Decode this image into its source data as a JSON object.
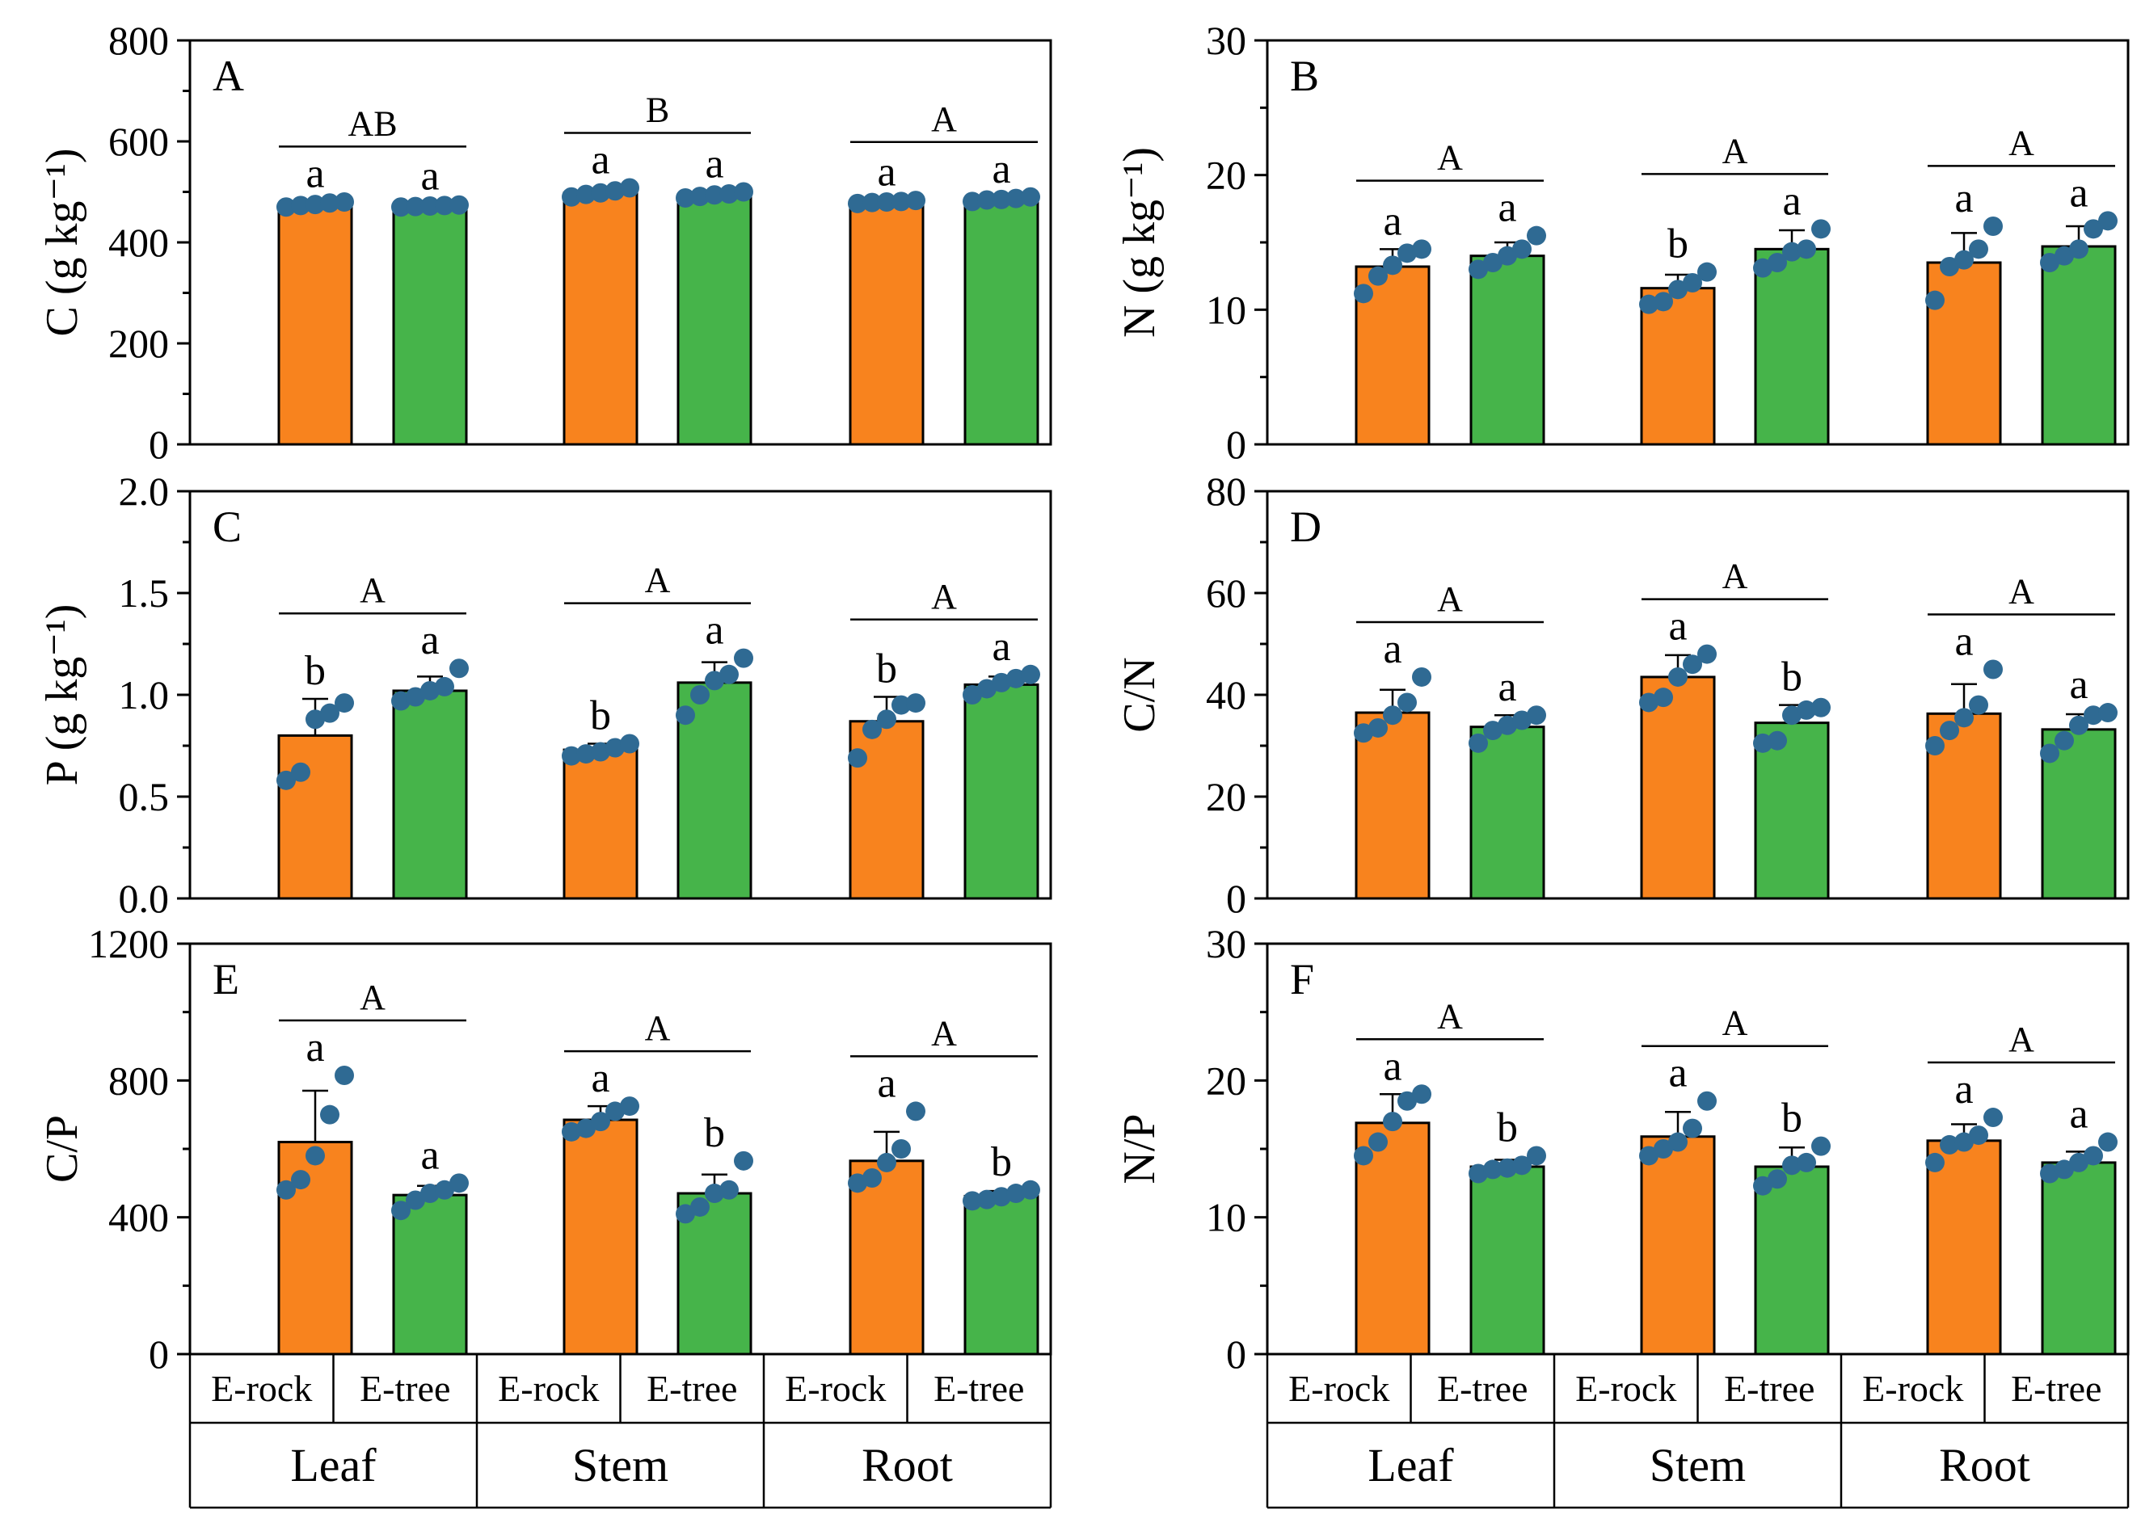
{
  "figure": {
    "colors": {
      "e_rock": "#F8831E",
      "e_tree": "#46B44A",
      "points": "#2F6A93"
    },
    "x_categories": [
      "E-rock",
      "E-tree"
    ],
    "organs": [
      "Leaf",
      "Stem",
      "Root"
    ]
  },
  "chart_data": [
    {
      "panel_label": "A",
      "type": "bar",
      "ylabel": "C (g kg⁻¹)",
      "ylim": [
        0,
        800
      ],
      "yticks": [
        "0",
        "200",
        "400",
        "600",
        "800"
      ],
      "groups": [
        {
          "organ": "Leaf",
          "group_letter": "AB",
          "bars": [
            {
              "name": "E-rock",
              "value": 475,
              "sd": 6,
              "letter": "a",
              "points": [
                470,
                473,
                475,
                478,
                480
              ]
            },
            {
              "name": "E-tree",
              "value": 472,
              "sd": 4,
              "letter": "a",
              "points": [
                470,
                471,
                472,
                473,
                474
              ]
            }
          ]
        },
        {
          "organ": "Stem",
          "group_letter": "B",
          "bars": [
            {
              "name": "E-rock",
              "value": 498,
              "sd": 8,
              "letter": "a",
              "points": [
                490,
                495,
                498,
                502,
                508
              ]
            },
            {
              "name": "E-tree",
              "value": 493,
              "sd": 6,
              "letter": "a",
              "points": [
                488,
                491,
                494,
                496,
                500
              ]
            }
          ]
        },
        {
          "organ": "Root",
          "group_letter": "A",
          "bars": [
            {
              "name": "E-rock",
              "value": 480,
              "sd": 4,
              "letter": "a",
              "points": [
                477,
                479,
                480,
                481,
                483
              ]
            },
            {
              "name": "E-tree",
              "value": 485,
              "sd": 5,
              "letter": "a",
              "points": [
                481,
                484,
                485,
                487,
                490
              ]
            }
          ]
        }
      ]
    },
    {
      "panel_label": "B",
      "type": "bar",
      "ylabel": "N (g kg⁻¹)",
      "ylim": [
        0,
        30
      ],
      "yticks": [
        "0",
        "10",
        "20",
        "30"
      ],
      "groups": [
        {
          "organ": "Leaf",
          "group_letter": "A",
          "bars": [
            {
              "name": "E-rock",
              "value": 13.2,
              "sd": 1.3,
              "letter": "a",
              "points": [
                11.2,
                12.5,
                13.3,
                14.2,
                14.5
              ]
            },
            {
              "name": "E-tree",
              "value": 14.0,
              "sd": 1.0,
              "letter": "a",
              "points": [
                13.0,
                13.5,
                14.0,
                14.5,
                15.5
              ]
            }
          ]
        },
        {
          "organ": "Stem",
          "group_letter": "A",
          "bars": [
            {
              "name": "E-rock",
              "value": 11.6,
              "sd": 1.0,
              "letter": "b",
              "points": [
                10.4,
                10.6,
                11.5,
                12.0,
                12.8
              ]
            },
            {
              "name": "E-tree",
              "value": 14.5,
              "sd": 1.4,
              "letter": "a",
              "points": [
                13.1,
                13.5,
                14.3,
                14.5,
                16.0
              ]
            }
          ]
        },
        {
          "organ": "Root",
          "group_letter": "A",
          "bars": [
            {
              "name": "E-rock",
              "value": 13.5,
              "sd": 2.2,
              "letter": "a",
              "points": [
                10.7,
                13.2,
                13.7,
                14.5,
                16.2
              ]
            },
            {
              "name": "E-tree",
              "value": 14.7,
              "sd": 1.5,
              "letter": "a",
              "points": [
                13.5,
                14.0,
                14.5,
                16.0,
                16.6
              ]
            }
          ]
        }
      ]
    },
    {
      "panel_label": "C",
      "type": "bar",
      "ylabel": "P (g kg⁻¹)",
      "ylim": [
        0,
        2.0
      ],
      "yticks": [
        "0.0",
        "0.5",
        "1.0",
        "1.5",
        "2.0"
      ],
      "groups": [
        {
          "organ": "Leaf",
          "group_letter": "A",
          "bars": [
            {
              "name": "E-rock",
              "value": 0.8,
              "sd": 0.18,
              "letter": "b",
              "points": [
                0.58,
                0.62,
                0.88,
                0.91,
                0.96
              ]
            },
            {
              "name": "E-tree",
              "value": 1.02,
              "sd": 0.07,
              "letter": "a",
              "points": [
                0.97,
                0.99,
                1.02,
                1.04,
                1.13
              ]
            }
          ]
        },
        {
          "organ": "Stem",
          "group_letter": "A",
          "bars": [
            {
              "name": "E-rock",
              "value": 0.73,
              "sd": 0.03,
              "letter": "b",
              "points": [
                0.7,
                0.71,
                0.72,
                0.74,
                0.76
              ]
            },
            {
              "name": "E-tree",
              "value": 1.06,
              "sd": 0.1,
              "letter": "a",
              "points": [
                0.9,
                1.0,
                1.07,
                1.1,
                1.18
              ]
            }
          ]
        },
        {
          "organ": "Root",
          "group_letter": "A",
          "bars": [
            {
              "name": "E-rock",
              "value": 0.87,
              "sd": 0.12,
              "letter": "b",
              "points": [
                0.69,
                0.83,
                0.88,
                0.95,
                0.96
              ]
            },
            {
              "name": "E-tree",
              "value": 1.05,
              "sd": 0.04,
              "letter": "a",
              "points": [
                1.0,
                1.03,
                1.06,
                1.08,
                1.1
              ]
            }
          ]
        }
      ]
    },
    {
      "panel_label": "D",
      "type": "bar",
      "ylabel": "C/N",
      "ylim": [
        0,
        80
      ],
      "yticks": [
        "0",
        "20",
        "40",
        "60",
        "80"
      ],
      "groups": [
        {
          "organ": "Leaf",
          "group_letter": "A",
          "bars": [
            {
              "name": "E-rock",
              "value": 36.5,
              "sd": 4.5,
              "letter": "a",
              "points": [
                32.5,
                33.5,
                36.0,
                38.5,
                43.5
              ]
            },
            {
              "name": "E-tree",
              "value": 33.7,
              "sd": 2.3,
              "letter": "a",
              "points": [
                30.5,
                33.0,
                34.0,
                35.0,
                36.0
              ]
            }
          ]
        },
        {
          "organ": "Stem",
          "group_letter": "A",
          "bars": [
            {
              "name": "E-rock",
              "value": 43.5,
              "sd": 4.3,
              "letter": "a",
              "points": [
                38.5,
                39.5,
                43.5,
                46.0,
                48.0
              ]
            },
            {
              "name": "E-tree",
              "value": 34.5,
              "sd": 3.5,
              "letter": "b",
              "points": [
                30.5,
                31.0,
                36.0,
                37.0,
                37.5
              ]
            }
          ]
        },
        {
          "organ": "Root",
          "group_letter": "A",
          "bars": [
            {
              "name": "E-rock",
              "value": 36.3,
              "sd": 5.8,
              "letter": "a",
              "points": [
                30.0,
                33.0,
                35.5,
                38.0,
                45.0
              ]
            },
            {
              "name": "E-tree",
              "value": 33.2,
              "sd": 3.0,
              "letter": "a",
              "points": [
                28.5,
                31.0,
                34.0,
                36.0,
                36.5
              ]
            }
          ]
        }
      ]
    },
    {
      "panel_label": "E",
      "type": "bar",
      "ylabel": "C/P",
      "ylim": [
        0,
        1200
      ],
      "yticks": [
        "0",
        "400",
        "800",
        "1200"
      ],
      "groups": [
        {
          "organ": "Leaf",
          "group_letter": "A",
          "bars": [
            {
              "name": "E-rock",
              "value": 620,
              "sd": 150,
              "letter": "a",
              "points": [
                480,
                510,
                580,
                700,
                815
              ]
            },
            {
              "name": "E-tree",
              "value": 465,
              "sd": 27,
              "letter": "a",
              "points": [
                420,
                450,
                470,
                480,
                500
              ]
            }
          ]
        },
        {
          "organ": "Stem",
          "group_letter": "A",
          "bars": [
            {
              "name": "E-rock",
              "value": 685,
              "sd": 40,
              "letter": "a",
              "points": [
                650,
                660,
                680,
                710,
                725
              ]
            },
            {
              "name": "E-tree",
              "value": 470,
              "sd": 55,
              "letter": "b",
              "points": [
                410,
                430,
                470,
                480,
                565
              ]
            }
          ]
        },
        {
          "organ": "Root",
          "group_letter": "A",
          "bars": [
            {
              "name": "E-rock",
              "value": 565,
              "sd": 85,
              "letter": "a",
              "points": [
                500,
                515,
                560,
                600,
                710
              ]
            },
            {
              "name": "E-tree",
              "value": 462,
              "sd": 15,
              "letter": "b",
              "points": [
                448,
                452,
                460,
                470,
                480
              ]
            }
          ]
        }
      ]
    },
    {
      "panel_label": "F",
      "type": "bar",
      "ylabel": "N/P",
      "ylim": [
        0,
        30
      ],
      "yticks": [
        "0",
        "10",
        "20",
        "30"
      ],
      "groups": [
        {
          "organ": "Leaf",
          "group_letter": "A",
          "bars": [
            {
              "name": "E-rock",
              "value": 16.9,
              "sd": 2.1,
              "letter": "a",
              "points": [
                14.5,
                15.5,
                17.0,
                18.5,
                19.0
              ]
            },
            {
              "name": "E-tree",
              "value": 13.7,
              "sd": 0.5,
              "letter": "b",
              "points": [
                13.2,
                13.5,
                13.6,
                13.8,
                14.5
              ]
            }
          ]
        },
        {
          "organ": "Stem",
          "group_letter": "A",
          "bars": [
            {
              "name": "E-rock",
              "value": 15.9,
              "sd": 1.8,
              "letter": "a",
              "points": [
                14.5,
                15.0,
                15.5,
                16.5,
                18.5
              ]
            },
            {
              "name": "E-tree",
              "value": 13.7,
              "sd": 1.4,
              "letter": "b",
              "points": [
                12.3,
                12.8,
                13.8,
                14.0,
                15.2
              ]
            }
          ]
        },
        {
          "organ": "Root",
          "group_letter": "A",
          "bars": [
            {
              "name": "E-rock",
              "value": 15.6,
              "sd": 1.2,
              "letter": "a",
              "points": [
                14.0,
                15.3,
                15.5,
                16.0,
                17.3
              ]
            },
            {
              "name": "E-tree",
              "value": 14.0,
              "sd": 0.8,
              "letter": "a",
              "points": [
                13.2,
                13.5,
                14.0,
                14.5,
                15.5
              ]
            }
          ]
        }
      ]
    }
  ]
}
